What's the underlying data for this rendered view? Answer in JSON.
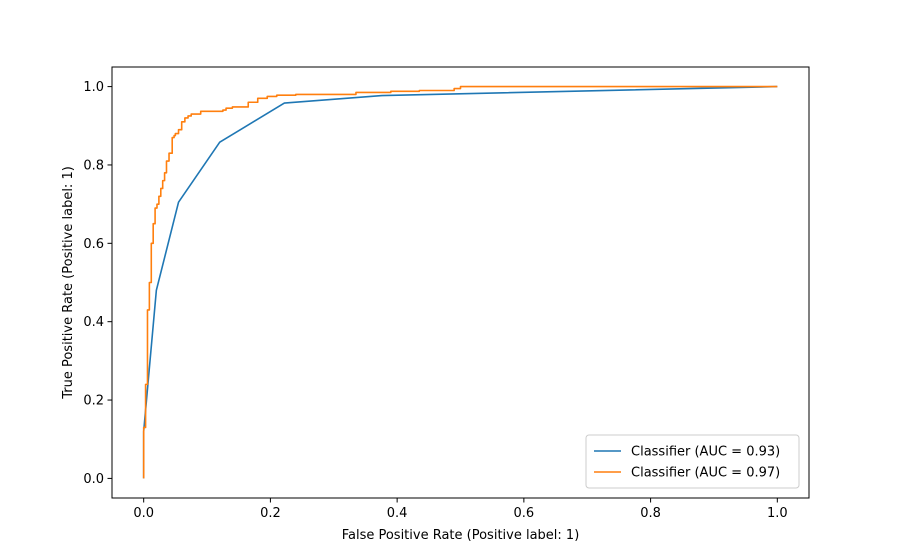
{
  "chart_data": {
    "type": "line",
    "title": "",
    "xlabel": "False Positive Rate (Positive label: 1)",
    "ylabel": "True Positive Rate (Positive label: 1)",
    "xlim": [
      -0.05,
      1.05
    ],
    "ylim": [
      -0.05,
      1.05
    ],
    "xticks": [
      0.0,
      0.2,
      0.4,
      0.6,
      0.8,
      1.0
    ],
    "xtick_labels": [
      "0.0",
      "0.2",
      "0.4",
      "0.6",
      "0.8",
      "1.0"
    ],
    "yticks": [
      0.0,
      0.2,
      0.4,
      0.6,
      0.8,
      1.0
    ],
    "ytick_labels": [
      "0.0",
      "0.2",
      "0.4",
      "0.6",
      "0.8",
      "1.0"
    ],
    "grid": false,
    "legend_position": "lower-right",
    "series": [
      {
        "name": "Classifier (AUC = 0.93)",
        "color": "#1f77b4",
        "x": [
          0.0,
          0.0,
          0.02,
          0.055,
          0.12,
          0.222,
          0.376,
          1.0
        ],
        "y": [
          0.0,
          0.12,
          0.48,
          0.705,
          0.858,
          0.958,
          0.977,
          1.0
        ]
      },
      {
        "name": "Classifier (AUC = 0.97)",
        "color": "#ff7f0e",
        "x": [
          0.0,
          0.0,
          0.003,
          0.003,
          0.006,
          0.006,
          0.009,
          0.009,
          0.012,
          0.012,
          0.015,
          0.015,
          0.018,
          0.018,
          0.021,
          0.021,
          0.024,
          0.024,
          0.027,
          0.027,
          0.03,
          0.03,
          0.033,
          0.033,
          0.036,
          0.036,
          0.04,
          0.04,
          0.045,
          0.045,
          0.048,
          0.048,
          0.05,
          0.05,
          0.055,
          0.055,
          0.06,
          0.06,
          0.065,
          0.065,
          0.07,
          0.07,
          0.075,
          0.075,
          0.09,
          0.09,
          0.125,
          0.125,
          0.13,
          0.13,
          0.14,
          0.14,
          0.165,
          0.165,
          0.18,
          0.18,
          0.195,
          0.195,
          0.21,
          0.21,
          0.24,
          0.24,
          0.335,
          0.335,
          0.39,
          0.39,
          0.435,
          0.435,
          0.49,
          0.49,
          0.5,
          0.5,
          0.78,
          0.78,
          1.0
        ],
        "y": [
          0.0,
          0.13,
          0.13,
          0.24,
          0.24,
          0.43,
          0.43,
          0.5,
          0.5,
          0.6,
          0.6,
          0.65,
          0.65,
          0.69,
          0.69,
          0.7,
          0.7,
          0.72,
          0.72,
          0.74,
          0.74,
          0.76,
          0.76,
          0.78,
          0.78,
          0.81,
          0.81,
          0.83,
          0.83,
          0.87,
          0.87,
          0.875,
          0.875,
          0.88,
          0.88,
          0.89,
          0.89,
          0.91,
          0.91,
          0.92,
          0.92,
          0.925,
          0.925,
          0.93,
          0.93,
          0.937,
          0.937,
          0.94,
          0.94,
          0.945,
          0.945,
          0.948,
          0.948,
          0.96,
          0.96,
          0.97,
          0.97,
          0.975,
          0.975,
          0.978,
          0.978,
          0.98,
          0.98,
          0.985,
          0.985,
          0.988,
          0.988,
          0.99,
          0.99,
          0.995,
          0.995,
          1.0,
          1.0,
          1.0,
          1.0
        ]
      }
    ]
  }
}
